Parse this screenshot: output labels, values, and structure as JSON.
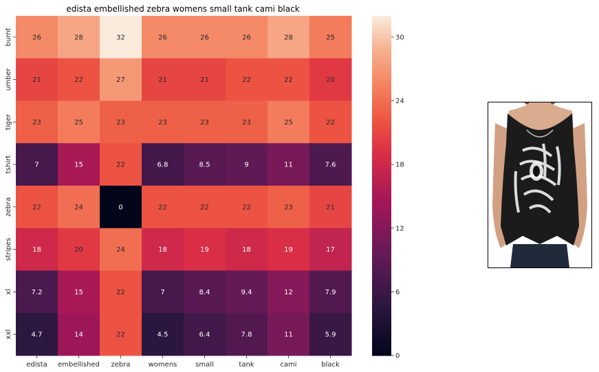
{
  "chart_data": {
    "type": "heatmap",
    "title": "edista embellished zebra womens small tank cami black",
    "x_categories": [
      "edista",
      "embellished",
      "zebra",
      "womens",
      "small",
      "tank",
      "cami",
      "black"
    ],
    "y_categories": [
      "burnt",
      "umber",
      "tiger",
      "tshirt",
      "zebra",
      "stripes",
      "xl",
      "xxl"
    ],
    "values": [
      [
        26,
        28,
        32,
        26,
        26,
        26,
        28,
        25
      ],
      [
        21,
        22,
        27,
        21,
        21,
        22,
        22,
        20
      ],
      [
        23,
        25,
        23,
        23,
        23,
        23,
        25,
        22
      ],
      [
        7,
        15,
        22,
        6.8,
        8.5,
        9,
        11,
        7.6
      ],
      [
        22,
        24,
        0,
        22,
        22,
        22,
        23,
        21
      ],
      [
        18,
        20,
        24,
        18,
        19,
        18,
        19,
        17
      ],
      [
        7.2,
        15,
        22,
        7,
        8.4,
        9.4,
        12,
        7.9
      ],
      [
        4.7,
        14,
        22,
        4.5,
        6.4,
        7.8,
        11,
        5.9
      ]
    ],
    "colorbar": {
      "min": 0,
      "max": 32,
      "ticks": [
        0,
        6,
        12,
        18,
        24,
        30
      ],
      "colormap": "rocket"
    },
    "annotations": true,
    "grid": false
  },
  "product_image": {
    "subject": "black sleeveless tank top with white zebra print worn by model with dark jeans"
  }
}
